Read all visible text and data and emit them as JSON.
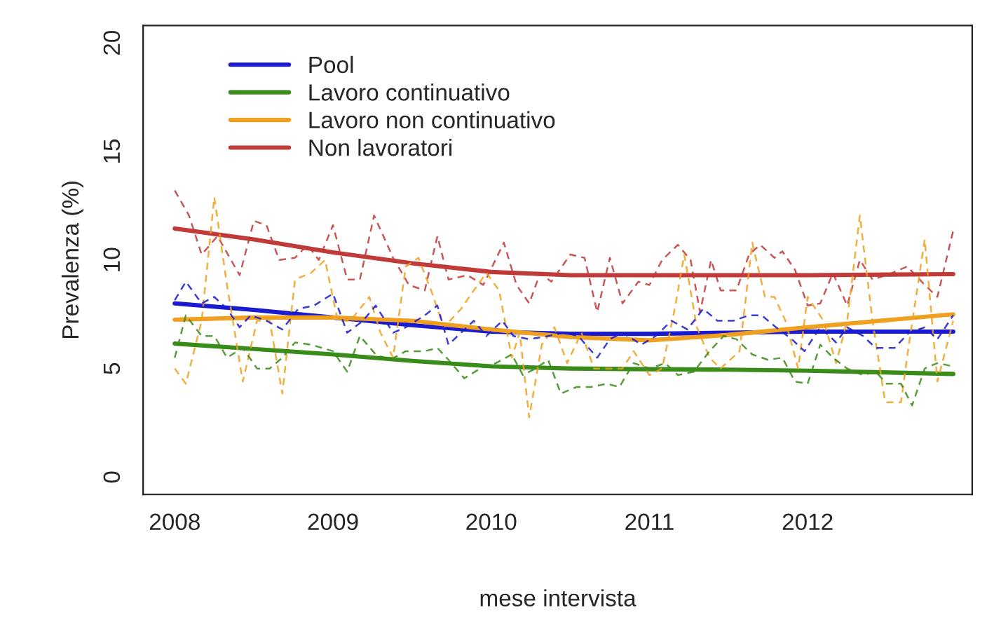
{
  "chart_data": {
    "type": "line",
    "xlabel": "mese intervista",
    "ylabel": "Prevalenza (%)",
    "xlim": [
      2007.8,
      2013.04
    ],
    "ylim": [
      -0.8,
      20.8
    ],
    "xticks": [
      2008,
      2009,
      2010,
      2011,
      2012
    ],
    "yticks": [
      0,
      5,
      10,
      15,
      20
    ],
    "grid": false,
    "legend": "top left",
    "series": [
      {
        "color": "#c03a3a",
        "line_style": "dashed",
        "x": [
          2008,
          2008.09,
          2008.17,
          2008.27,
          2008.41,
          2008.5,
          2008.58,
          2008.66,
          2008.76,
          2008.84,
          2008.91,
          2009.0,
          2009.09,
          2009.17,
          2009.26,
          2009.38,
          2009.48,
          2009.58,
          2009.66,
          2009.73,
          2009.85,
          2009.95,
          2010.08,
          2010.16,
          2010.24,
          2010.31,
          2010.38,
          2010.5,
          2010.59,
          2010.67,
          2010.75,
          2010.83,
          2010.93,
          2011.0,
          2011.08,
          2011.18,
          2011.26,
          2011.32,
          2011.39,
          2011.45,
          2011.55,
          2011.63,
          2011.7,
          2011.79,
          2011.84,
          2011.92,
          2012.0,
          2012.08,
          2012.16,
          2012.25,
          2012.33,
          2012.41,
          2012.5,
          2012.63,
          2012.74,
          2012.82,
          2012.92
        ],
        "values": [
          13.2,
          12.05,
          10.25,
          11.1,
          9.3,
          11.8,
          11.6,
          10.0,
          10.1,
          10.7,
          10.0,
          11.6,
          9.1,
          9.1,
          12.05,
          10.1,
          8.85,
          8.6,
          11.1,
          9.1,
          9.3,
          8.85,
          10.8,
          8.85,
          8.0,
          9.4,
          9.0,
          10.25,
          10.1,
          7.6,
          10.1,
          8.0,
          9.0,
          8.85,
          10.0,
          10.7,
          10.0,
          7.6,
          10.0,
          8.6,
          8.6,
          10.25,
          10.7,
          10.1,
          10.4,
          9.55,
          7.9,
          8.0,
          9.4,
          7.9,
          10.0,
          9.1,
          9.3,
          9.7,
          8.85,
          8.3,
          11.35
        ]
      },
      {
        "color": "#f0a020",
        "line_style": "dashed",
        "x": [
          2008,
          2008.07,
          2008.17,
          2008.25,
          2008.33,
          2008.43,
          2008.52,
          2008.6,
          2008.68,
          2008.76,
          2008.86,
          2008.95,
          2009.03,
          2009.11,
          2009.23,
          2009.3,
          2009.38,
          2009.46,
          2009.54,
          2009.62,
          2009.7,
          2009.81,
          2009.89,
          2009.97,
          2010.05,
          2010.13,
          2010.18,
          2010.24,
          2010.32,
          2010.4,
          2010.48,
          2010.57,
          2010.65,
          2010.75,
          2010.83,
          2010.9,
          2011.0,
          2011.08,
          2011.16,
          2011.22,
          2011.3,
          2011.38,
          2011.45,
          2011.57,
          2011.65,
          2011.73,
          2011.79,
          2011.86,
          2011.94,
          2012.0,
          2012.1,
          2012.18,
          2012.25,
          2012.33,
          2012.41,
          2012.49,
          2012.59,
          2012.64,
          2012.74,
          2012.82,
          2012.92
        ],
        "values": [
          5.0,
          4.3,
          7.2,
          12.9,
          8.85,
          4.4,
          7.2,
          7.2,
          3.85,
          9.1,
          9.4,
          10.0,
          7.2,
          7.2,
          8.3,
          6.65,
          5.5,
          9.7,
          10.1,
          8.6,
          6.9,
          7.75,
          8.6,
          9.4,
          8.6,
          5.5,
          6.65,
          2.75,
          6.1,
          6.9,
          5.25,
          6.65,
          5.0,
          5.0,
          5.0,
          5.8,
          4.7,
          5.0,
          7.75,
          10.25,
          6.9,
          5.5,
          5.0,
          5.8,
          10.8,
          8.3,
          8.3,
          7.2,
          5.0,
          8.3,
          7.2,
          5.25,
          7.2,
          12.05,
          7.2,
          3.45,
          3.45,
          6.1,
          10.95,
          4.4,
          7.2
        ]
      },
      {
        "color": "#1a1ad0",
        "line_style": "dashed",
        "x": [
          2008,
          2008.07,
          2008.17,
          2008.25,
          2008.33,
          2008.41,
          2008.48,
          2008.58,
          2008.68,
          2008.78,
          2008.88,
          2009.0,
          2009.09,
          2009.19,
          2009.27,
          2009.38,
          2009.46,
          2009.58,
          2009.66,
          2009.73,
          2009.81,
          2009.89,
          2009.97,
          2010.07,
          2010.14,
          2010.24,
          2010.36,
          2010.46,
          2010.55,
          2010.67,
          2010.75,
          2010.83,
          2010.95,
          2011.04,
          2011.14,
          2011.24,
          2011.34,
          2011.43,
          2011.53,
          2011.63,
          2011.71,
          2011.8,
          2011.9,
          2011.98,
          2012.08,
          2012.18,
          2012.25,
          2012.35,
          2012.43,
          2012.55,
          2012.64,
          2012.74,
          2012.82,
          2012.92
        ],
        "values": [
          8.15,
          9.0,
          8.0,
          8.3,
          7.75,
          6.9,
          7.45,
          7.2,
          6.8,
          7.75,
          7.9,
          8.45,
          6.65,
          7.2,
          7.9,
          6.65,
          6.9,
          7.45,
          7.9,
          6.1,
          6.65,
          7.2,
          6.5,
          7.2,
          6.5,
          6.35,
          6.5,
          6.65,
          6.5,
          5.5,
          6.35,
          6.65,
          6.1,
          6.5,
          7.2,
          6.8,
          7.75,
          7.2,
          7.2,
          7.45,
          7.45,
          6.9,
          6.35,
          5.8,
          6.9,
          6.2,
          6.9,
          6.5,
          5.95,
          5.95,
          6.65,
          6.9,
          6.35,
          7.45
        ]
      },
      {
        "color": "#3a8c1a",
        "line_style": "dashed",
        "x": [
          2008,
          2008.07,
          2008.17,
          2008.25,
          2008.33,
          2008.43,
          2008.52,
          2008.6,
          2008.68,
          2008.76,
          2008.86,
          2009.0,
          2009.09,
          2009.17,
          2009.27,
          2009.36,
          2009.46,
          2009.58,
          2009.66,
          2009.73,
          2009.83,
          2009.93,
          2010.03,
          2010.13,
          2010.2,
          2010.28,
          2010.36,
          2010.44,
          2010.54,
          2010.63,
          2010.73,
          2010.81,
          2010.9,
          2011.0,
          2011.1,
          2011.18,
          2011.28,
          2011.38,
          2011.47,
          2011.55,
          2011.65,
          2011.75,
          2011.84,
          2011.92,
          2012.0,
          2012.08,
          2012.16,
          2012.25,
          2012.35,
          2012.43,
          2012.5,
          2012.59,
          2012.66,
          2012.74,
          2012.82,
          2012.92
        ],
        "values": [
          5.5,
          7.45,
          6.5,
          6.5,
          5.5,
          5.95,
          5.0,
          5.0,
          5.5,
          6.2,
          6.1,
          5.8,
          4.85,
          6.5,
          5.65,
          5.4,
          5.8,
          5.8,
          5.95,
          5.4,
          4.55,
          5.0,
          5.25,
          5.65,
          4.7,
          5.0,
          5.4,
          3.85,
          4.15,
          4.15,
          4.3,
          4.15,
          5.25,
          5.0,
          5.25,
          4.7,
          4.85,
          5.8,
          6.5,
          6.35,
          5.65,
          5.4,
          5.5,
          4.4,
          4.3,
          6.1,
          5.5,
          5.0,
          4.7,
          4.85,
          4.3,
          4.3,
          3.3,
          5.0,
          5.25,
          5.1
        ]
      },
      {
        "name": "Pool",
        "color": "#1a1ad0",
        "line_style": "solid",
        "x": [
          2008,
          2008.5,
          2009,
          2009.5,
          2010,
          2010.5,
          2011,
          2011.5,
          2012,
          2012.92
        ],
        "values": [
          8.0,
          7.7,
          7.35,
          7.0,
          6.7,
          6.6,
          6.6,
          6.65,
          6.7,
          6.7
        ]
      },
      {
        "name": "Lavoro continuativo",
        "color": "#3a8c1a",
        "line_style": "solid",
        "x": [
          2008,
          2008.5,
          2009,
          2009.5,
          2010,
          2010.5,
          2011,
          2011.5,
          2012,
          2012.92
        ],
        "values": [
          6.15,
          5.9,
          5.65,
          5.35,
          5.1,
          5.0,
          4.97,
          4.95,
          4.9,
          4.75
        ]
      },
      {
        "name": "Lavoro non continuativo",
        "color": "#f0a020",
        "line_style": "solid",
        "x": [
          2008,
          2008.5,
          2009,
          2009.5,
          2010,
          2010.5,
          2011,
          2011.5,
          2012,
          2012.92
        ],
        "values": [
          7.25,
          7.35,
          7.35,
          7.2,
          6.8,
          6.45,
          6.3,
          6.55,
          6.9,
          7.5
        ]
      },
      {
        "name": "Non lavoratori",
        "color": "#c03a3a",
        "line_style": "solid",
        "x": [
          2008,
          2008.5,
          2009,
          2009.5,
          2010,
          2010.5,
          2011,
          2011.5,
          2012,
          2012.92
        ],
        "values": [
          11.45,
          10.95,
          10.35,
          9.85,
          9.45,
          9.3,
          9.3,
          9.3,
          9.3,
          9.35
        ]
      }
    ]
  }
}
